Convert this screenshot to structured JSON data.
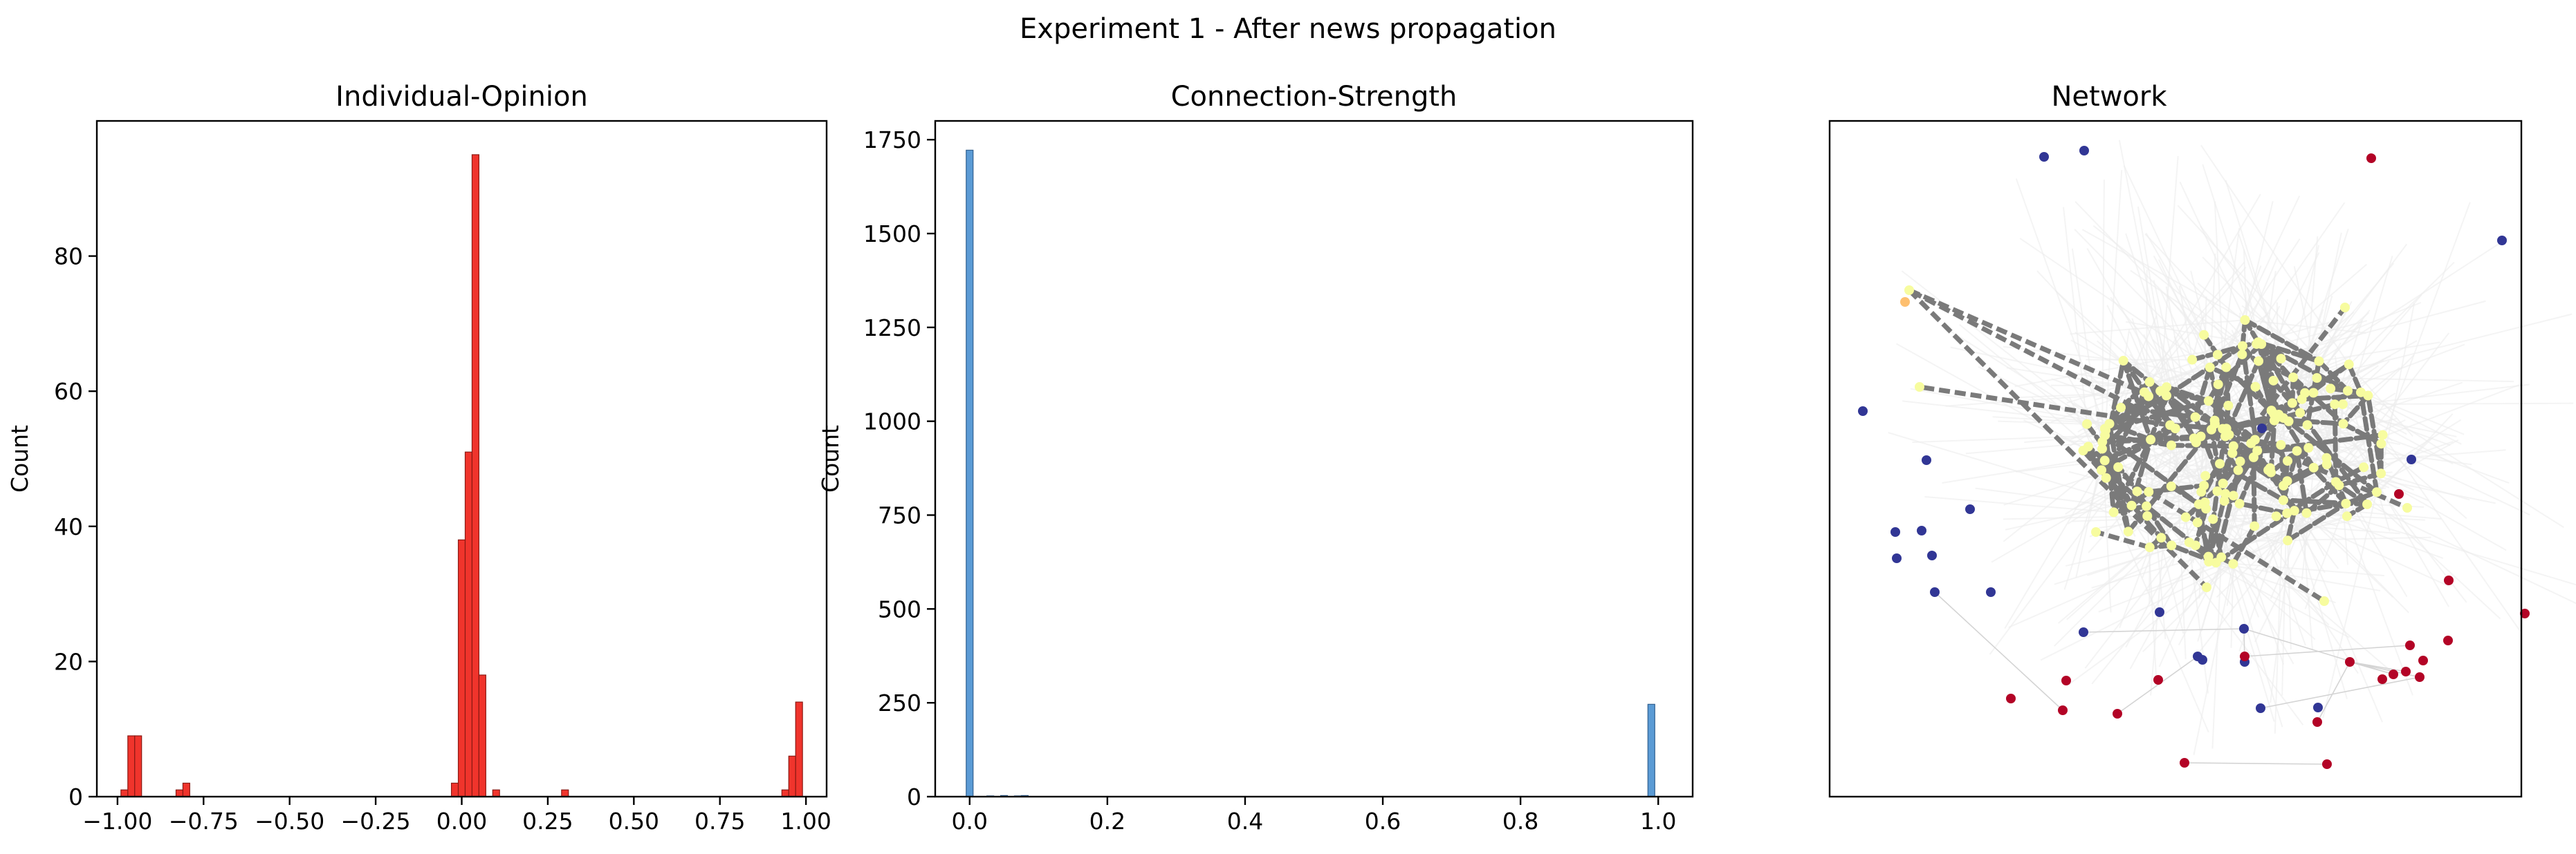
{
  "suptitle": "Experiment 1 - After news propagation",
  "chart_data": [
    {
      "type": "bar",
      "title": "Individual-Opinion",
      "xlabel": "",
      "ylabel": "Count",
      "xlim": [
        -1.06,
        1.06
      ],
      "ylim": [
        0,
        100
      ],
      "xticks": [
        "-1.00",
        "-0.75",
        "-0.50",
        "-0.25",
        "0.00",
        "0.25",
        "0.50",
        "0.75",
        "1.00"
      ],
      "yticks": [
        "0",
        "20",
        "40",
        "60",
        "80"
      ],
      "bar_color": "#f0342c",
      "edge_color": "#8b1a14",
      "bin_width": 0.02,
      "bins": [
        {
          "x": -0.98,
          "value": 1
        },
        {
          "x": -0.96,
          "value": 9
        },
        {
          "x": -0.94,
          "value": 9
        },
        {
          "x": -0.82,
          "value": 1
        },
        {
          "x": -0.8,
          "value": 2
        },
        {
          "x": -0.02,
          "value": 2
        },
        {
          "x": 0.0,
          "value": 38
        },
        {
          "x": 0.02,
          "value": 51
        },
        {
          "x": 0.04,
          "value": 95
        },
        {
          "x": 0.06,
          "value": 18
        },
        {
          "x": 0.1,
          "value": 1
        },
        {
          "x": 0.3,
          "value": 1
        },
        {
          "x": 0.94,
          "value": 1
        },
        {
          "x": 0.96,
          "value": 6
        },
        {
          "x": 0.98,
          "value": 14
        }
      ]
    },
    {
      "type": "bar",
      "title": "Connection-Strength",
      "xlabel": "",
      "ylabel": "Count",
      "xlim": [
        -0.05,
        1.05
      ],
      "ylim": [
        0,
        1800
      ],
      "xticks": [
        "0.0",
        "0.2",
        "0.4",
        "0.6",
        "0.8",
        "1.0"
      ],
      "yticks": [
        "0",
        "250",
        "500",
        "750",
        "1000",
        "1250",
        "1500",
        "1750"
      ],
      "bar_color": "#5b9bd5",
      "edge_color": "#2f5f8f",
      "bin_width": 0.01,
      "bins": [
        {
          "x": 0.0,
          "value": 1722
        },
        {
          "x": 0.03,
          "value": 2
        },
        {
          "x": 0.05,
          "value": 3
        },
        {
          "x": 0.07,
          "value": 2
        },
        {
          "x": 0.08,
          "value": 3
        },
        {
          "x": 0.99,
          "value": 246
        }
      ]
    }
  ],
  "network": {
    "title": "Network",
    "colors": {
      "dense_node": "#f7fc9f",
      "dense_edge": "#7a7a7a",
      "blue_node": "#313695",
      "red_node": "#b30326",
      "orange_node": "#fdbf6f",
      "light_edge": "#d4d4d4"
    }
  }
}
